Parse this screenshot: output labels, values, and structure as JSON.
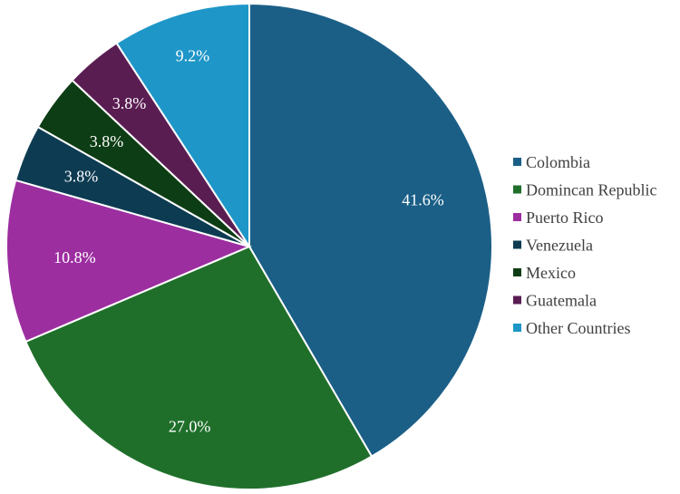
{
  "chart_data": {
    "type": "pie",
    "title": "",
    "legend_position": "right",
    "series": [
      {
        "values": [
          41.6,
          27.0,
          10.8,
          3.8,
          3.8,
          3.8,
          9.2
        ]
      }
    ],
    "categories": [
      "Colombia",
      "Domincan Republic",
      "Puerto Rico",
      "Venezuela",
      "Mexico",
      "Guatemala",
      "Other Countries"
    ],
    "labels": [
      "41.6%",
      "27.0%",
      "10.8%",
      "3.8%",
      "3.8%",
      "3.8%",
      "9.2%"
    ],
    "colors": [
      "#1b5f87",
      "#1f6f2b",
      "#9c2ea0",
      "#0d3b52",
      "#0d3d14",
      "#5a1d52",
      "#1e96c8"
    ]
  }
}
